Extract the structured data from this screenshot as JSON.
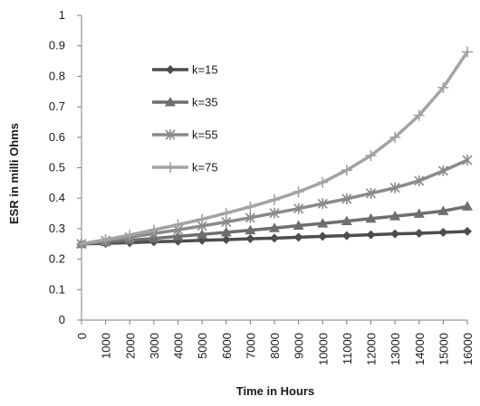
{
  "chart_data": {
    "type": "line",
    "title": "",
    "xlabel": "Time in Hours",
    "ylabel": "ESR in milli Ohms",
    "x": [
      0,
      1000,
      2000,
      3000,
      4000,
      5000,
      6000,
      7000,
      8000,
      9000,
      10000,
      11000,
      12000,
      13000,
      14000,
      15000,
      16000
    ],
    "x_tick_labels": [
      "0",
      "1000",
      "2000",
      "3000",
      "4000",
      "5000",
      "6000",
      "7000",
      "8000",
      "9000",
      "10000",
      "11000",
      "12000",
      "13000",
      "14000",
      "15000",
      "16000"
    ],
    "ylim": [
      0,
      1
    ],
    "y_ticks": [
      0,
      0.1,
      0.2,
      0.3,
      0.4,
      0.5,
      0.6,
      0.7,
      0.8,
      0.9,
      1
    ],
    "y_tick_labels": [
      "0",
      "0.1",
      "0.2",
      "0.3",
      "0.4",
      "0.5",
      "0.6",
      "0.7",
      "0.8",
      "0.9",
      "1"
    ],
    "grid": false,
    "legend_position": "upper-left",
    "series": [
      {
        "name": "k=15",
        "marker": "diamond",
        "color": "#4d4d4d",
        "values": [
          0.25,
          0.252,
          0.254,
          0.257,
          0.259,
          0.262,
          0.264,
          0.267,
          0.269,
          0.272,
          0.275,
          0.277,
          0.28,
          0.283,
          0.285,
          0.288,
          0.291
        ]
      },
      {
        "name": "k=35",
        "marker": "triangle",
        "color": "#6e6e6e",
        "values": [
          0.25,
          0.256,
          0.262,
          0.268,
          0.275,
          0.281,
          0.288,
          0.295,
          0.302,
          0.31,
          0.317,
          0.325,
          0.333,
          0.341,
          0.349,
          0.358,
          0.373
        ]
      },
      {
        "name": "k=55",
        "marker": "asterisk",
        "color": "#8a8a8a",
        "values": [
          0.25,
          0.261,
          0.272,
          0.284,
          0.296,
          0.309,
          0.322,
          0.336,
          0.351,
          0.366,
          0.382,
          0.398,
          0.416,
          0.434,
          0.457,
          0.49,
          0.525
        ]
      },
      {
        "name": "k=75",
        "marker": "plus",
        "color": "#a3a3a3",
        "values": [
          0.25,
          0.264,
          0.279,
          0.296,
          0.313,
          0.331,
          0.351,
          0.372,
          0.395,
          0.421,
          0.452,
          0.492,
          0.54,
          0.6,
          0.672,
          0.763,
          0.88
        ]
      }
    ]
  }
}
